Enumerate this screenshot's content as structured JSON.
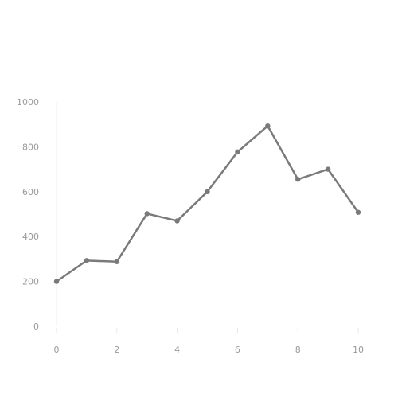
{
  "chart_data": {
    "type": "line",
    "title": "",
    "xlabel": "",
    "ylabel": "",
    "xlim": [
      0,
      10
    ],
    "ylim": [
      0,
      1000
    ],
    "grid": false,
    "x_ticks": [
      0,
      2,
      4,
      6,
      8,
      10
    ],
    "y_ticks": [
      0,
      200,
      400,
      600,
      800,
      1000
    ],
    "x_tick_labels": [
      "0",
      "2",
      "4",
      "6",
      "8",
      "10"
    ],
    "y_tick_labels": [
      "0",
      "200",
      "400",
      "600",
      "800",
      "1000"
    ],
    "series": [
      {
        "x": [
          0,
          1,
          2,
          3,
          4,
          5,
          6,
          7,
          8,
          9,
          10
        ],
        "y": [
          200,
          293,
          288,
          502,
          470,
          600,
          777,
          893,
          655,
          700,
          508
        ],
        "color": "#7a7a7a"
      }
    ]
  }
}
